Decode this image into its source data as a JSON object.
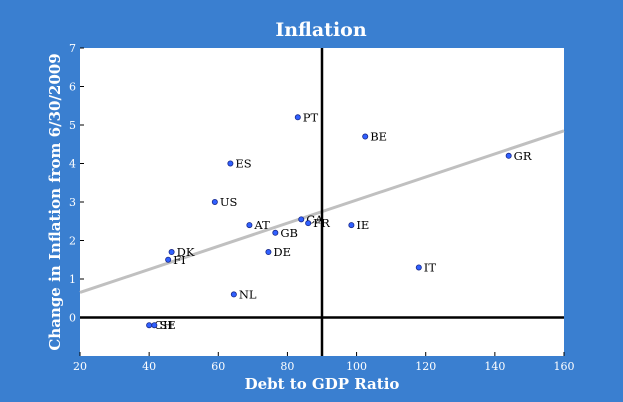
{
  "chart_data": {
    "type": "scatter",
    "title": "Inflation",
    "xlabel": "Debt to GDP Ratio",
    "ylabel": "Change in Inflation from 6/30/2009",
    "xlim": [
      20,
      160
    ],
    "ylim": [
      -1,
      7
    ],
    "xticks": [
      "20",
      "40",
      "60",
      "80",
      "100",
      "120",
      "140",
      "160"
    ],
    "yticks": [
      "0",
      "1",
      "2",
      "3",
      "4",
      "5",
      "6",
      "7"
    ],
    "grid": false,
    "legend": "none",
    "reference_lines": {
      "x": 90,
      "y": 0
    },
    "trendline": {
      "x": [
        20,
        160
      ],
      "y": [
        0.65,
        4.85
      ]
    },
    "points": [
      {
        "label": "PT",
        "x": 83,
        "y": 5.2
      },
      {
        "label": "BE",
        "x": 102.5,
        "y": 4.7
      },
      {
        "label": "GR",
        "x": 144,
        "y": 4.2
      },
      {
        "label": "ES",
        "x": 63.5,
        "y": 4.0
      },
      {
        "label": "US",
        "x": 59,
        "y": 3.0
      },
      {
        "label": "AT",
        "x": 69,
        "y": 2.4
      },
      {
        "label": "GB",
        "x": 76.5,
        "y": 2.2
      },
      {
        "label": "CA",
        "x": 84,
        "y": 2.55
      },
      {
        "label": "FR",
        "x": 86,
        "y": 2.45
      },
      {
        "label": "IE",
        "x": 98.5,
        "y": 2.4
      },
      {
        "label": "DE",
        "x": 74.5,
        "y": 1.7
      },
      {
        "label": "DK",
        "x": 46.5,
        "y": 1.7
      },
      {
        "label": "FI",
        "x": 45.5,
        "y": 1.5
      },
      {
        "label": "IT",
        "x": 118,
        "y": 1.3
      },
      {
        "label": "NL",
        "x": 64.5,
        "y": 0.6
      },
      {
        "label": "CH",
        "x": 40,
        "y": -0.2
      },
      {
        "label": "SE",
        "x": 41.5,
        "y": -0.2
      }
    ]
  },
  "colors": {
    "background": "#3a7fd0",
    "plot": "#ffffff",
    "point": "#3060ff",
    "trend": "#c0c0c0",
    "axes_text": "#ffffff"
  }
}
